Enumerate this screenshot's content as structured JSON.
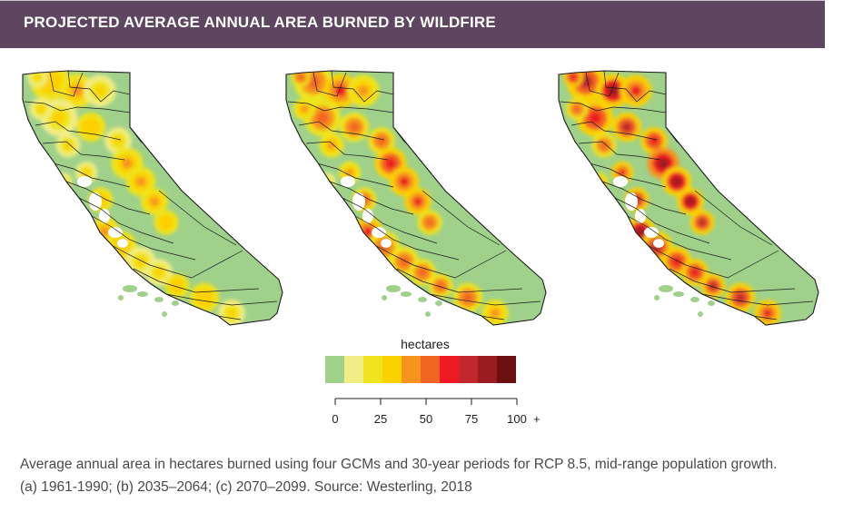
{
  "header": {
    "title": "PROJECTED AVERAGE ANNUAL AREA BURNED BY WILDFIRE"
  },
  "chart_data": {
    "type": "heatmap",
    "title": "PROJECTED AVERAGE ANNUAL AREA BURNED BY WILDFIRE",
    "panels": [
      {
        "period": "1961-1990",
        "intensity": 0.3
      },
      {
        "period": "2035–2064",
        "intensity": 0.6
      },
      {
        "period": "2070–2099",
        "intensity": 0.92
      }
    ],
    "legend": {
      "title": "hectares",
      "colors": [
        "#9fd18b",
        "#f2ee86",
        "#f0e41e",
        "#fbd200",
        "#f7941d",
        "#f26522",
        "#ed1c24",
        "#c1272d",
        "#9b1c20",
        "#6b0f10"
      ],
      "ticks": [
        "0",
        "25",
        "50",
        "75",
        "100"
      ],
      "tick_values": [
        0,
        25,
        50,
        75,
        100
      ],
      "range": [
        0,
        100
      ],
      "open_end": "+"
    }
  },
  "caption": {
    "line1": "Average annual area in hectares burned using four GCMs and 30-year periods for RCP 8.5, mid-range population growth.",
    "line2": "(a) 1961-1990; (b) 2035–2064; (c) 2070–2099. Source: Westerling, 2018"
  }
}
